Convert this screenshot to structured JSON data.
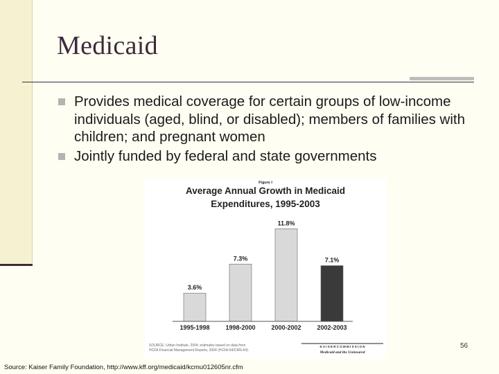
{
  "slide": {
    "title": "Medicaid",
    "bullets": [
      "Provides medical coverage for certain groups of low-income individuals (aged, blind, or disabled); members of families with children; and pregnant women",
      "Jointly funded by federal and state governments"
    ],
    "page_number": "56",
    "source": "Source: Kaiser Family Foundation, http://www.kff.org/medicaid/kcmu012605nr.cfm"
  },
  "figure": {
    "figure_label": "Figure I",
    "title_line1": "Average Annual Growth in Medicaid",
    "title_line2": "Expenditures, 1995-2003",
    "source_note_line1": "SOURCE: Urban Institute, 2004; estimates based on data from",
    "source_note_line2": "HCFA Financial Management Reports, 2004 (HCFA-64/CMS-64).",
    "logo_line1": "K A I S E R   C O M M I S S I O N",
    "logo_line2": "Medicaid and the Uninsured"
  },
  "colors": {
    "bar_default": "#d9d9d9",
    "bar_highlight": "#3a3a3a",
    "title_color": "#3b2b3b",
    "bullet_mark": "#b3b3b3"
  },
  "chart_data": {
    "type": "bar",
    "title": "Average Annual Growth in Medicaid Expenditures, 1995-2003",
    "categories": [
      "1995-1998",
      "1998-2000",
      "2000-2002",
      "2002-2003"
    ],
    "values": [
      3.6,
      7.3,
      11.8,
      7.1
    ],
    "value_labels": [
      "3.6%",
      "7.3%",
      "11.8%",
      "7.1%"
    ],
    "highlight_index": 3,
    "ylim": [
      0,
      12
    ],
    "grid": false,
    "legend": "none"
  }
}
